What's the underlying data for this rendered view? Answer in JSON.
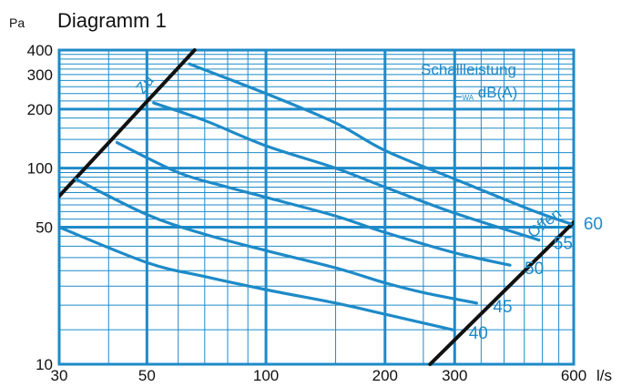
{
  "chart_data": {
    "type": "line",
    "title": "Diagramm 1",
    "ylabel": "Pa",
    "xlabel": "l/s",
    "x_scale": "log",
    "y_scale": "log",
    "xlim": [
      30,
      600
    ],
    "ylim": [
      10,
      400
    ],
    "grid": true,
    "x_ticks": [
      {
        "value": 30,
        "label": "30"
      },
      {
        "value": 50,
        "label": "50"
      },
      {
        "value": 100,
        "label": "100"
      },
      {
        "value": 200,
        "label": "200"
      },
      {
        "value": 300,
        "label": "300"
      },
      {
        "value": 600,
        "label": "600"
      }
    ],
    "y_ticks": [
      {
        "value": 10,
        "label": "10"
      },
      {
        "value": 50,
        "label": "50"
      },
      {
        "value": 100,
        "label": "100"
      },
      {
        "value": 200,
        "label": "200"
      },
      {
        "value": 300,
        "label": "300"
      },
      {
        "value": 400,
        "label": "400"
      }
    ],
    "legend": {
      "title": "Schallleistung",
      "subtitle_main": "L",
      "subtitle_sub": "WA",
      "subtitle_rest": " dB(A)",
      "placement": "top-right"
    },
    "boundaries": [
      {
        "name": "Zu",
        "points": [
          [
            30,
            72
          ],
          [
            66,
            400
          ]
        ]
      },
      {
        "name": "Offen",
        "points": [
          [
            260,
            10
          ],
          [
            600,
            53
          ]
        ]
      }
    ],
    "series": [
      {
        "name": "40",
        "points": [
          [
            30,
            50
          ],
          [
            50,
            33
          ],
          [
            70,
            28
          ],
          [
            100,
            24
          ],
          [
            150,
            20.5
          ],
          [
            200,
            18
          ],
          [
            296,
            15
          ]
        ]
      },
      {
        "name": "45",
        "points": [
          [
            33,
            88
          ],
          [
            50,
            58
          ],
          [
            70,
            46
          ],
          [
            100,
            38
          ],
          [
            150,
            31
          ],
          [
            200,
            26
          ],
          [
            250,
            23.2
          ],
          [
            341,
            20.5
          ]
        ]
      },
      {
        "name": "50",
        "points": [
          [
            42,
            135
          ],
          [
            60,
            95
          ],
          [
            80,
            80
          ],
          [
            100,
            71
          ],
          [
            150,
            57
          ],
          [
            200,
            47
          ],
          [
            300,
            37
          ],
          [
            414,
            32
          ]
        ]
      },
      {
        "name": "55",
        "points": [
          [
            52,
            215
          ],
          [
            70,
            175
          ],
          [
            100,
            130
          ],
          [
            150,
            100
          ],
          [
            200,
            80
          ],
          [
            300,
            59
          ],
          [
            490,
            43
          ]
        ]
      },
      {
        "name": "60",
        "points": [
          [
            64,
            340
          ],
          [
            100,
            240
          ],
          [
            150,
            170
          ],
          [
            200,
            123
          ],
          [
            300,
            88
          ],
          [
            480,
            60
          ],
          [
            590,
            52
          ]
        ]
      }
    ],
    "curve_labels": [
      "40",
      "45",
      "50",
      "55",
      "60"
    ],
    "colors": {
      "curves": "#1e8ac8",
      "boundaries": "#111111",
      "grid": "#1e8ac8",
      "text": "#111111"
    }
  }
}
